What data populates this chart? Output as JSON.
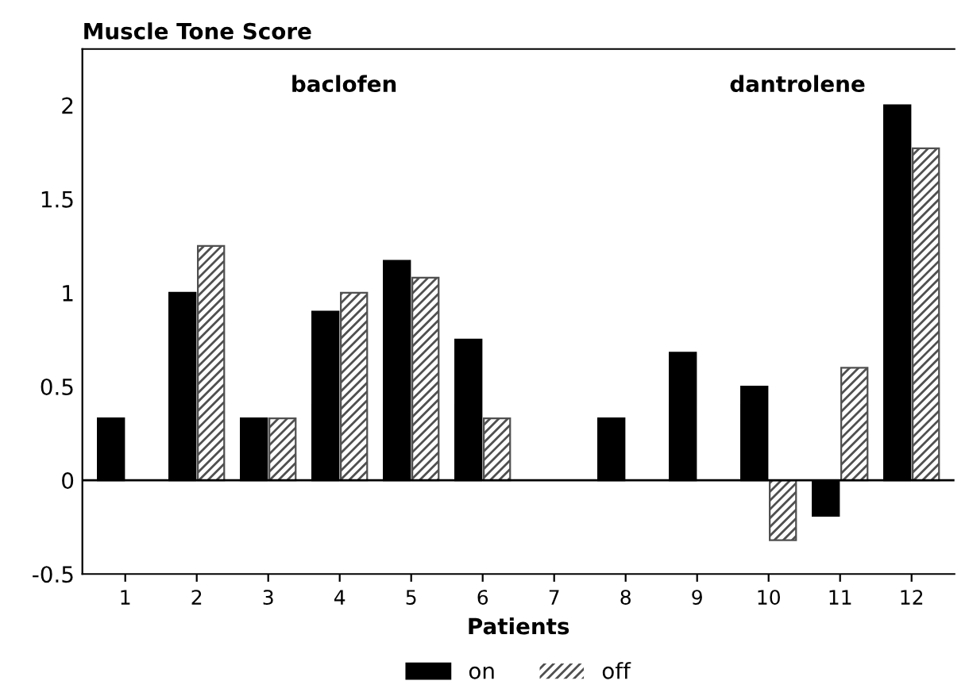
{
  "chart_data": {
    "type": "bar",
    "title": "Muscle Tone Score",
    "xlabel": "Patients",
    "categories": [
      "1",
      "2",
      "3",
      "4",
      "5",
      "6",
      "7",
      "8",
      "9",
      "10",
      "11",
      "12"
    ],
    "series": [
      {
        "name": "on",
        "color": "#000000",
        "values": [
          0.33,
          1.0,
          0.33,
          0.9,
          1.17,
          0.75,
          0,
          0.33,
          0.68,
          0.5,
          -0.19,
          2.0
        ]
      },
      {
        "name": "off",
        "color": "#505050",
        "values": [
          0,
          1.25,
          0.33,
          1.0,
          1.08,
          0.33,
          0,
          0,
          0,
          -0.32,
          0.6,
          1.77
        ]
      }
    ],
    "annotations": [
      "baclofen",
      "dantrolene"
    ],
    "ylim": [
      -0.5,
      2.3
    ],
    "yticks": [
      -0.5,
      0,
      0.5,
      1,
      1.5,
      2
    ],
    "ref_lines": [
      {
        "axis": "y",
        "value": 0,
        "color": "#000000"
      }
    ],
    "grid": false,
    "legend": "bottom"
  }
}
